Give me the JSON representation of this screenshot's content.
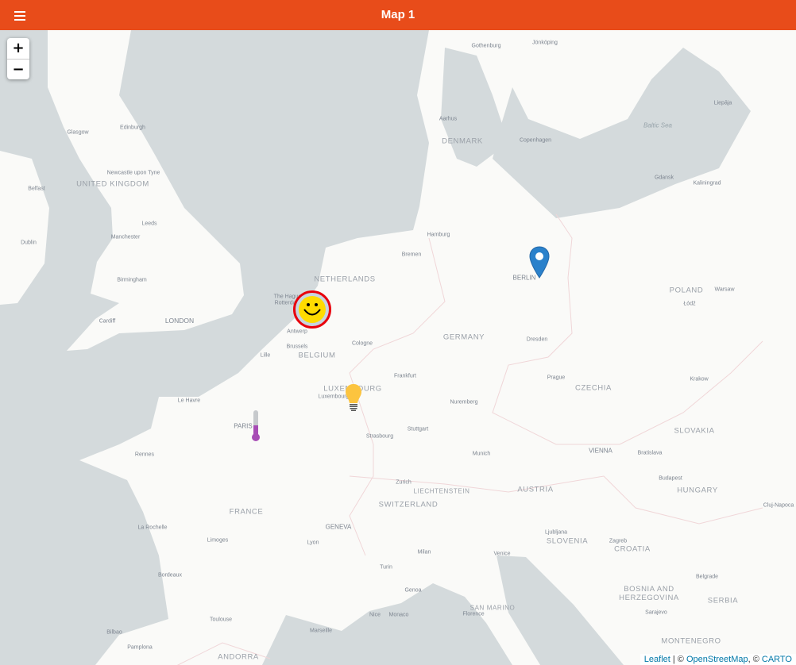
{
  "header": {
    "title": "Map 1",
    "menu_icon": "list-icon"
  },
  "zoom": {
    "in": "+",
    "out": "−"
  },
  "colors": {
    "header": "#e84c1a",
    "sea": "#d4dadc",
    "land": "#fafaf8",
    "pin": "#2a81cb",
    "bulb": "#fcc43f",
    "thermo": "#a74cb5"
  },
  "attribution": {
    "leaflet": "Leaflet",
    "sep": " | © ",
    "osm": "OpenStreetMap",
    "sep2": ", © ",
    "carto": "CARTO"
  },
  "countries": [
    "UNITED KINGDOM",
    "NETHERLANDS",
    "BELGIUM",
    "GERMANY",
    "LUXEMBOURG",
    "FRANCE",
    "SWITZERLAND",
    "LIECHTENSTEIN",
    "AUSTRIA",
    "CZECHIA",
    "SLOVAKIA",
    "POLAND",
    "HUNGARY",
    "SLOVENIA",
    "CROATIA",
    "BOSNIA AND HERZEGOVINA",
    "SERBIA",
    "MONTENEGRO",
    "DENMARK",
    "ANDORRA",
    "SAN MARINO"
  ],
  "seas": [
    "Baltic Sea"
  ],
  "cities": [
    "Glasgow",
    "Edinburgh",
    "Newcastle upon Tyne",
    "Belfast",
    "Dublin",
    "Leeds",
    "Manchester",
    "Birmingham",
    "Cardiff",
    "LONDON",
    "The Hague",
    "Rotterdam",
    "Antwerp",
    "Brussels",
    "Lille",
    "Cologne",
    "Luxembourg",
    "Frankfurt",
    "Nuremberg",
    "Stuttgart",
    "Strasbourg",
    "Munich",
    "Zurich",
    "GENEVA",
    "Lyon",
    "Milan",
    "Turin",
    "Genoa",
    "Nice",
    "Monaco",
    "Marseille",
    "Florence",
    "Venice",
    "Ljubljana",
    "Zagreb",
    "Sarajevo",
    "Belgrade",
    "Budapest",
    "Bratislava",
    "VIENNA",
    "Prague",
    "Dresden",
    "BERLIN",
    "Hamburg",
    "Bremen",
    "Aarhus",
    "Copenhagen",
    "Gothenburg",
    "Jönköping",
    "Gdansk",
    "Kaliningrad",
    "Warsaw",
    "Łódź",
    "Krakow",
    "Liepāja",
    "Le Havre",
    "PARIS",
    "Rennes",
    "La Rochelle",
    "Limoges",
    "Bordeaux",
    "Toulouse",
    "Bilbao",
    "Pamplona",
    "Cluj-Napoca"
  ],
  "markers": [
    {
      "name": "Berlin",
      "icon": "map-pin-icon"
    },
    {
      "name": "smiley",
      "icon": "smiley-face-icon"
    },
    {
      "name": "Luxembourg",
      "icon": "light-bulb-icon"
    },
    {
      "name": "Paris",
      "icon": "thermometer-icon"
    }
  ]
}
